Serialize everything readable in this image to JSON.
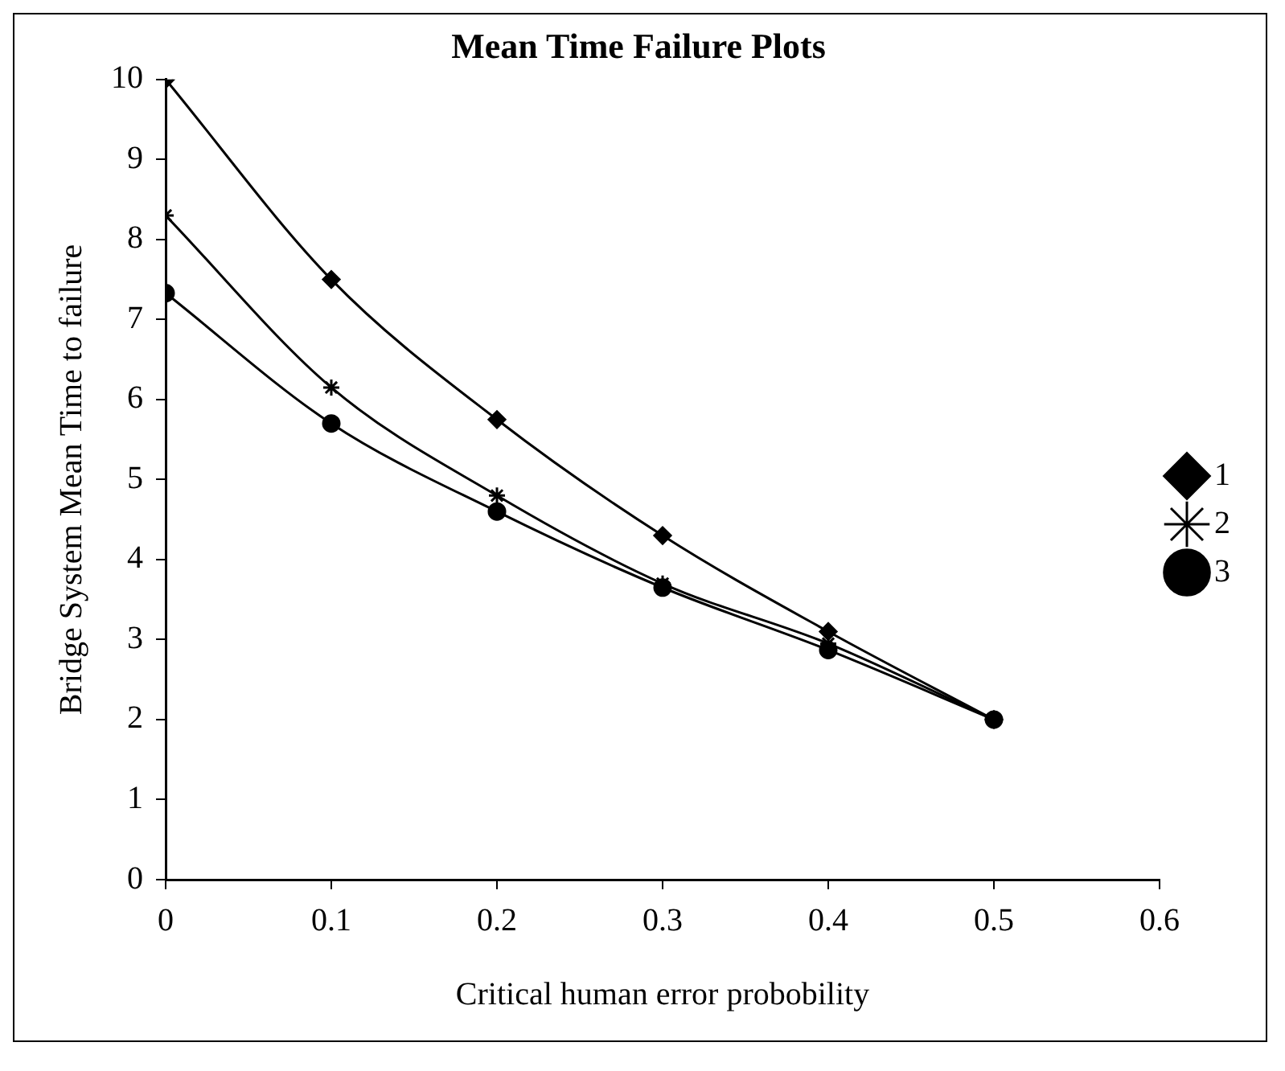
{
  "chart_data": {
    "type": "line",
    "title": "Mean Time Failure Plots",
    "xlabel": "Critical human error probobility",
    "ylabel": "Bridge System Mean Time to failure",
    "x": [
      0,
      0.1,
      0.2,
      0.3,
      0.4,
      0.5
    ],
    "series": [
      {
        "name": "1",
        "color": "#000000",
        "marker": "diamond",
        "values": [
          10,
          7.5,
          5.75,
          4.3,
          3.1,
          2.0
        ]
      },
      {
        "name": "2",
        "color": "#000000",
        "marker": "cross",
        "values": [
          8.3,
          6.15,
          4.8,
          3.7,
          2.95,
          2.0
        ]
      },
      {
        "name": "3",
        "color": "#000000",
        "marker": "circle",
        "values": [
          7.33,
          5.7,
          4.6,
          3.65,
          2.87,
          2.0
        ]
      }
    ],
    "xlim": [
      0,
      0.6
    ],
    "xticks": [
      0,
      0.1,
      0.2,
      0.3,
      0.4,
      0.5,
      0.6
    ],
    "ylim": [
      0,
      10
    ],
    "yticks": [
      0,
      1,
      2,
      3,
      4,
      5,
      6,
      7,
      8,
      9,
      10
    ],
    "grid": false,
    "legend": "right",
    "line_style": "solid"
  }
}
